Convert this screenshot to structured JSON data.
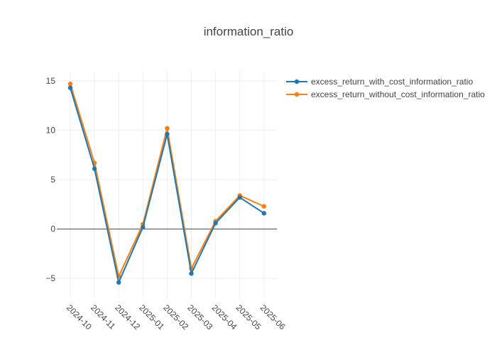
{
  "chart_data": {
    "type": "line",
    "title": "information_ratio",
    "xlabel": "",
    "ylabel": "",
    "categories": [
      "2024-10",
      "2024-11",
      "2024-12",
      "2025-01",
      "2025-02",
      "2025-03",
      "2025-04",
      "2025-05",
      "2025-06"
    ],
    "ylim": [
      -7,
      16
    ],
    "yticks": [
      -5,
      0,
      5,
      10,
      15
    ],
    "grid": true,
    "legend_position": "top-right",
    "series": [
      {
        "name": "excess_return_with_cost_information_ratio",
        "color": "#1f77b4",
        "values": [
          14.3,
          6.1,
          -5.4,
          0.2,
          9.6,
          -4.5,
          0.6,
          3.2,
          1.6
        ]
      },
      {
        "name": "excess_return_without_cost_information_ratio",
        "color": "#ff7f0e",
        "values": [
          14.7,
          6.7,
          -4.8,
          0.5,
          10.2,
          -4.0,
          0.8,
          3.4,
          2.3
        ]
      }
    ]
  }
}
